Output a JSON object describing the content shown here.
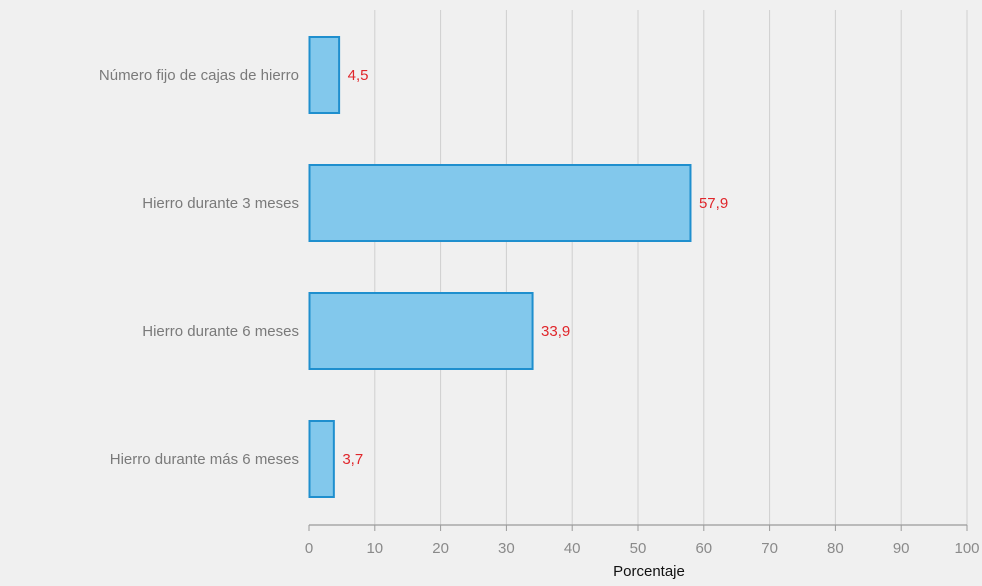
{
  "chart_data": {
    "type": "bar",
    "orientation": "horizontal",
    "categories": [
      "Número fijo de cajas de hierro",
      "Hierro durante 3 meses",
      "Hierro durante 6 meses",
      "Hierro durante más 6 meses"
    ],
    "values": [
      4.5,
      57.9,
      33.9,
      3.7
    ],
    "value_labels": [
      "4,5",
      "57,9",
      "33,9",
      "3,7"
    ],
    "xlabel": "Porcentaje",
    "ylabel": "",
    "xlim": [
      0,
      100
    ],
    "xticks": [
      0,
      10,
      20,
      30,
      40,
      50,
      60,
      70,
      80,
      90,
      100
    ],
    "xtick_labels": [
      "0",
      "10",
      "20",
      "30",
      "40",
      "50",
      "60",
      "70",
      "80",
      "90",
      "100"
    ],
    "grid": true,
    "legend": "none"
  },
  "colors": {
    "background": "#f0f0f0",
    "bar_fill": "#82c8ec",
    "bar_stroke": "#1f8fce",
    "value_label": "#e0262b",
    "gridline": "#cfcfcf",
    "axis": "#9a9a9a"
  }
}
